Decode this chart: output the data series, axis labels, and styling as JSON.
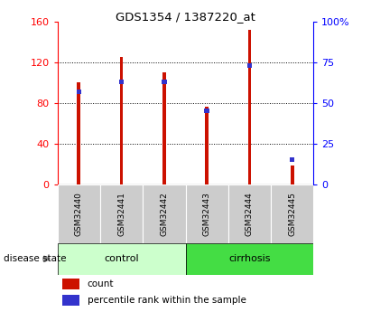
{
  "title": "GDS1354 / 1387220_at",
  "samples": [
    "GSM32440",
    "GSM32441",
    "GSM32442",
    "GSM32443",
    "GSM32444",
    "GSM32445"
  ],
  "bar_values": [
    100,
    125,
    110,
    76,
    152,
    18
  ],
  "percentile_values": [
    57,
    63,
    63,
    45,
    73,
    15
  ],
  "bar_color": "#cc1100",
  "blue_color": "#3333cc",
  "left_ylim": [
    0,
    160
  ],
  "right_ylim": [
    0,
    100
  ],
  "left_yticks": [
    0,
    40,
    80,
    120,
    160
  ],
  "right_yticks": [
    0,
    25,
    50,
    75,
    100
  ],
  "right_yticklabels": [
    "0",
    "25",
    "50",
    "75",
    "100%"
  ],
  "grid_values": [
    40,
    80,
    120
  ],
  "control_color": "#ccffcc",
  "cirrhosis_color": "#44dd44",
  "label_bg_color": "#cccccc",
  "disease_state_label": "disease state",
  "control_label": "control",
  "cirrhosis_label": "cirrhosis",
  "legend_count": "count",
  "legend_percentile": "percentile rank within the sample",
  "bar_width": 0.08
}
